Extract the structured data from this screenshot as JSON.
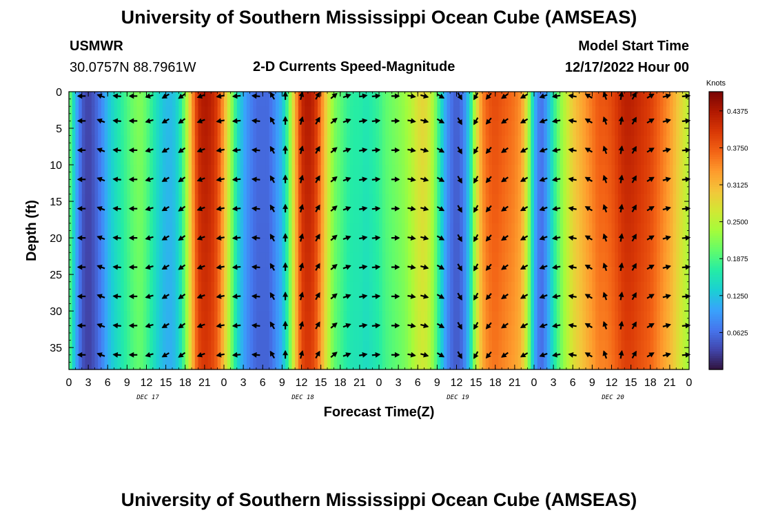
{
  "page": {
    "title": "University of Southern Mississippi Ocean Cube (AMSEAS)",
    "station": "USMWR",
    "coords": "30.0757N  88.7961W",
    "subtitle": "2-D Currents Speed-Magnitude",
    "model_start_label": "Model Start Time",
    "model_start_value": "12/17/2022 Hour 00",
    "footer_title": "University of Southern Mississippi Ocean Cube (AMSEAS)"
  },
  "chart_data": {
    "type": "heatmap",
    "title": "2-D Currents Speed-Magnitude",
    "xlabel": "Forecast Time(Z)",
    "ylabel": "Depth (ft)",
    "x_unit": "hours from model start",
    "xlim": [
      0,
      96
    ],
    "ylim": [
      0,
      38
    ],
    "y_inverted": true,
    "x_ticks": [
      0,
      3,
      6,
      9,
      12,
      15,
      18,
      21,
      24,
      27,
      30,
      33,
      36,
      39,
      42,
      45,
      48,
      51,
      54,
      57,
      60,
      63,
      66,
      69,
      72,
      75,
      78,
      81,
      84,
      87,
      90,
      93,
      96
    ],
    "x_tick_labels": [
      "0",
      "3",
      "6",
      "9",
      "12",
      "15",
      "18",
      "21",
      "0",
      "3",
      "6",
      "9",
      "12",
      "15",
      "18",
      "21",
      "0",
      "3",
      "6",
      "9",
      "12",
      "15",
      "18",
      "21",
      "0",
      "3",
      "6",
      "9",
      "12",
      "15",
      "18",
      "21",
      "0"
    ],
    "y_ticks": [
      0,
      5,
      10,
      15,
      20,
      25,
      30,
      35
    ],
    "y_tick_labels": [
      "0",
      "5",
      "10",
      "15",
      "20",
      "25",
      "30",
      "35"
    ],
    "day_labels": [
      {
        "x": 12,
        "label": "DEC 17"
      },
      {
        "x": 36,
        "label": "DEC 18"
      },
      {
        "x": 60,
        "label": "DEC 19"
      },
      {
        "x": 84,
        "label": "DEC 20"
      }
    ],
    "colorbar": {
      "unit": "Knots",
      "min": 0.0,
      "max": 0.47,
      "ticks": [
        0.0625,
        0.125,
        0.1875,
        0.25,
        0.3125,
        0.375,
        0.4375
      ],
      "tick_labels": [
        "0.0625",
        "0.1250",
        "0.1875",
        "0.2500",
        "0.3125",
        "0.3750",
        "0.4375"
      ],
      "palette": [
        "#30123b",
        "#4145ab",
        "#4675ed",
        "#39a2fc",
        "#1bcfd4",
        "#24eca6",
        "#61fc6c",
        "#a4fc3b",
        "#d1e834",
        "#f3c63a",
        "#fe9b2d",
        "#f36315",
        "#d93806",
        "#b11901",
        "#7a0403"
      ]
    },
    "speed_profile": {
      "hours": [
        0,
        1,
        2,
        3,
        4,
        5,
        6,
        7,
        8,
        9,
        10,
        11,
        12,
        13,
        14,
        15,
        16,
        17,
        18,
        19,
        20,
        21,
        22,
        23,
        24,
        25,
        26,
        27,
        28,
        29,
        30,
        31,
        32,
        33,
        34,
        35,
        36,
        37,
        38,
        39,
        40,
        41,
        42,
        43,
        44,
        45,
        46,
        47,
        48,
        49,
        50,
        51,
        52,
        53,
        54,
        55,
        56,
        57,
        58,
        59,
        60,
        61,
        62,
        63,
        64,
        65,
        66,
        67,
        68,
        69,
        70,
        71,
        72,
        73,
        74,
        75,
        76,
        77,
        78,
        79,
        80,
        81,
        82,
        83,
        84,
        85,
        86,
        87,
        88,
        89,
        90,
        91,
        92,
        93,
        94,
        95,
        96
      ],
      "speed_knots": [
        0.22,
        0.12,
        0.05,
        0.03,
        0.05,
        0.08,
        0.12,
        0.15,
        0.17,
        0.19,
        0.21,
        0.22,
        0.2,
        0.17,
        0.14,
        0.12,
        0.12,
        0.15,
        0.22,
        0.33,
        0.42,
        0.44,
        0.43,
        0.4,
        0.33,
        0.24,
        0.16,
        0.11,
        0.08,
        0.06,
        0.06,
        0.06,
        0.09,
        0.12,
        0.2,
        0.32,
        0.42,
        0.44,
        0.42,
        0.36,
        0.28,
        0.22,
        0.2,
        0.18,
        0.17,
        0.17,
        0.16,
        0.17,
        0.18,
        0.2,
        0.21,
        0.22,
        0.23,
        0.25,
        0.28,
        0.29,
        0.26,
        0.2,
        0.12,
        0.07,
        0.05,
        0.07,
        0.14,
        0.27,
        0.35,
        0.38,
        0.39,
        0.38,
        0.37,
        0.36,
        0.34,
        0.26,
        0.12,
        0.06,
        0.1,
        0.17,
        0.22,
        0.26,
        0.3,
        0.32,
        0.34,
        0.36,
        0.38,
        0.38,
        0.39,
        0.41,
        0.43,
        0.43,
        0.42,
        0.41,
        0.4,
        0.38,
        0.36,
        0.34,
        0.31,
        0.28,
        0.25
      ]
    },
    "depth_levels_ft": [
      0,
      4,
      8,
      12,
      16,
      20,
      24,
      28,
      32,
      36
    ],
    "arrow_columns_hours": [
      2,
      5,
      7.5,
      10,
      12.5,
      15,
      17.5,
      20.5,
      23.5,
      26,
      29,
      31.5,
      33.5,
      36,
      38.5,
      41,
      43,
      45.5,
      47.5,
      50.5,
      53,
      55,
      57.5,
      60.5,
      63,
      65,
      67.5,
      70.5,
      73.5,
      75.5,
      78,
      80.5,
      83,
      85.5,
      87.5,
      90,
      92.5,
      95.5
    ],
    "arrow_direction_deg": [
      180,
      160,
      175,
      180,
      195,
      210,
      215,
      200,
      190,
      185,
      175,
      120,
      90,
      75,
      60,
      40,
      20,
      10,
      5,
      0,
      350,
      345,
      330,
      300,
      240,
      230,
      215,
      210,
      200,
      190,
      170,
      150,
      110,
      80,
      60,
      30,
      15,
      5
    ]
  }
}
